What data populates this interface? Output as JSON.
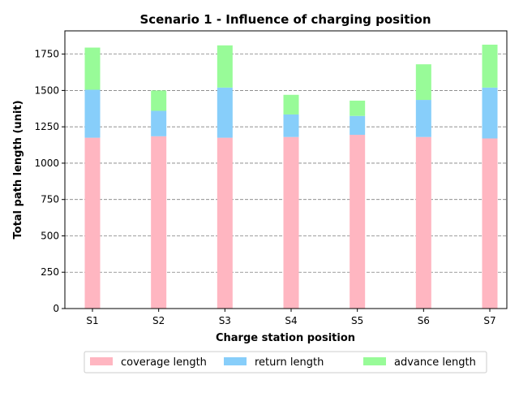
{
  "chart_data": {
    "type": "bar",
    "stacked": true,
    "title": "Scenario 1 - Influence of charging position",
    "xlabel": "Charge station position",
    "ylabel": "Total path length (unit)",
    "categories": [
      "S1",
      "S2",
      "S3",
      "S4",
      "S5",
      "S6",
      "S7"
    ],
    "series": [
      {
        "name": "coverage length",
        "color": "#ffb6c1",
        "values": [
          1175,
          1185,
          1175,
          1180,
          1195,
          1180,
          1170
        ]
      },
      {
        "name": "return length",
        "color": "#87cefa",
        "values": [
          330,
          175,
          345,
          155,
          130,
          255,
          350
        ]
      },
      {
        "name": "advance length",
        "color": "#98fb98",
        "values": [
          290,
          140,
          290,
          135,
          105,
          245,
          295
        ]
      }
    ],
    "ylim": [
      0,
      1910
    ],
    "yticks": [
      0,
      250,
      500,
      750,
      1000,
      1250,
      1500,
      1750
    ],
    "grid": true,
    "legend_position": "bottom-center"
  }
}
